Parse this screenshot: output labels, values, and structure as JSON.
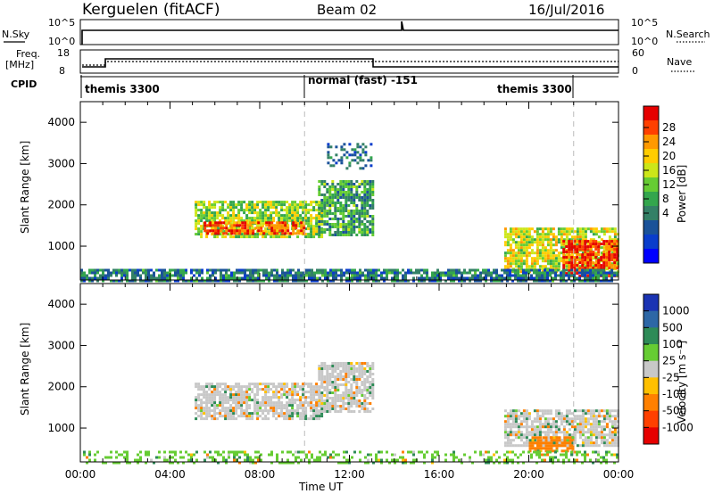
{
  "header": {
    "radar_title": "Kerguelen (fitACF)",
    "beam": "Beam 02",
    "date": "16/Jul/2016"
  },
  "noise_panel": {
    "left_label": "N.Sky",
    "left_ticks": [
      "10^5",
      "10^0"
    ],
    "right_label": "N.Search",
    "right_ticks": [
      "10^5",
      "10^0"
    ]
  },
  "freq_panel": {
    "label_line1": "Freq.",
    "label_line2": "[MHz]",
    "left_ticks": [
      "18",
      "8"
    ],
    "right_label": "Nave",
    "right_ticks": [
      "60",
      "0"
    ]
  },
  "cpid_panel": {
    "label": "CPID",
    "modes": [
      "themis 3300",
      "normal (fast) -151",
      "themis 3300"
    ]
  },
  "power_colorbar": {
    "label": "Power [dB]",
    "ticks": [
      "28",
      "24",
      "20",
      "16",
      "12",
      "8",
      "4"
    ],
    "colors": [
      "#e60000",
      "#ff4000",
      "#ff9900",
      "#ffcc00",
      "#cce619",
      "#66cc33",
      "#33a64d",
      "#338066",
      "#1a5299",
      "#0a3dcc",
      "#0000ff"
    ]
  },
  "velocity_colorbar": {
    "label": "Velocity [m s⁻¹]",
    "ticks": [
      "1000",
      "500",
      "100",
      "25",
      "-25",
      "-100",
      "-500",
      "-1000"
    ],
    "colors": [
      "#1a33b3",
      "#2d67a6",
      "#2e8b57",
      "#66cc33",
      "#c8c8c8",
      "#ffc000",
      "#ff8000",
      "#ff4000",
      "#e60000"
    ]
  },
  "axes": {
    "range_label": "Slant Range [km]",
    "range_ticks": [
      "4000",
      "3000",
      "2000",
      "1000"
    ],
    "time_label": "Time UT",
    "time_ticks": [
      "00:00",
      "04:00",
      "08:00",
      "12:00",
      "16:00",
      "20:00",
      "00:00"
    ]
  },
  "chart_data": [
    {
      "type": "heatmap",
      "variable": "Power",
      "units": "dB",
      "x_range_hours": [
        0,
        24
      ],
      "y_range_km": [
        180,
        4500
      ],
      "color_range": [
        0,
        30
      ],
      "mode_boundaries_hours": [
        10,
        22
      ],
      "regions": [
        {
          "t0": 5.1,
          "t1": 10.8,
          "r0": 1200,
          "r1": 2100,
          "value": 16
        },
        {
          "t0": 5.5,
          "t1": 10.0,
          "r0": 1300,
          "r1": 1600,
          "value": 26
        },
        {
          "t0": 10.6,
          "t1": 13.1,
          "r0": 1300,
          "r1": 2600,
          "value": 12
        },
        {
          "t0": 18.9,
          "t1": 24.0,
          "r0": 400,
          "r1": 1450,
          "value": 18
        },
        {
          "t0": 21.5,
          "t1": 24.0,
          "r0": 300,
          "r1": 1150,
          "value": 27
        },
        {
          "t0": 0.0,
          "t1": 24.0,
          "r0": 180,
          "r1": 450,
          "value": 9
        },
        {
          "t0": 11.0,
          "t1": 13.0,
          "r0": 2900,
          "r1": 3500,
          "value": 8
        }
      ]
    },
    {
      "type": "heatmap",
      "variable": "Velocity",
      "units": "m s-1",
      "x_range_hours": [
        0,
        24
      ],
      "y_range_km": [
        180,
        4500
      ],
      "color_range": [
        -1000,
        1000
      ],
      "mode_boundaries_hours": [
        10,
        22
      ],
      "regions": [
        {
          "t0": 5.1,
          "t1": 10.8,
          "r0": 1200,
          "r1": 2100,
          "value": 0
        },
        {
          "t0": 10.6,
          "t1": 13.1,
          "r0": 1400,
          "r1": 2600,
          "value": 0
        },
        {
          "t0": 18.9,
          "t1": 24.0,
          "r0": 600,
          "r1": 1450,
          "value": 0
        },
        {
          "t0": 20.0,
          "t1": 22.0,
          "r0": 450,
          "r1": 800,
          "value": -150
        },
        {
          "t0": 0.0,
          "t1": 24.0,
          "r0": 180,
          "r1": 450,
          "value": 60
        }
      ]
    }
  ]
}
